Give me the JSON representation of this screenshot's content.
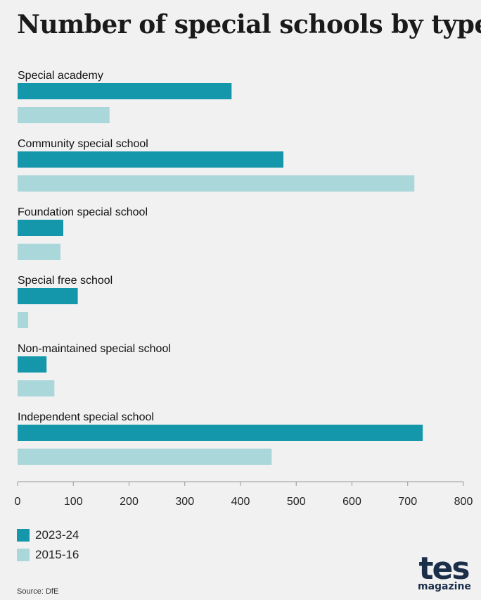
{
  "chart_data": {
    "type": "bar",
    "orientation": "horizontal",
    "title": "Number of special schools by type",
    "categories": [
      "Special academy",
      "Community special school",
      "Foundation special school",
      "Special free school",
      "Non-maintained special school",
      "Independent special school"
    ],
    "series": [
      {
        "name": "2023-24",
        "values": [
          384,
          477,
          82,
          108,
          52,
          727
        ]
      },
      {
        "name": "2015-16",
        "values": [
          165,
          712,
          77,
          19,
          66,
          456
        ]
      }
    ],
    "xlim": [
      0,
      800
    ],
    "xticks": [
      0,
      100,
      200,
      300,
      400,
      500,
      600,
      700,
      800
    ],
    "grid": false,
    "legend_position": "bottom-left"
  },
  "colors": {
    "series_0": "#1497aa",
    "series_1": "#a9d7da",
    "axis": "#999999"
  },
  "source": "Source: DfE",
  "logo": {
    "main": "tes",
    "sub": "magazine"
  }
}
